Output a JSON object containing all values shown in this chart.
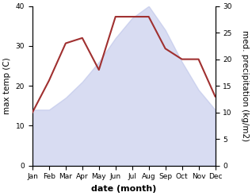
{
  "months": [
    "Jan",
    "Feb",
    "Mar",
    "Apr",
    "May",
    "Jun",
    "Jul",
    "Aug",
    "Sep",
    "Oct",
    "Nov",
    "Dec"
  ],
  "temp": [
    14,
    14,
    17,
    21,
    26,
    32,
    37,
    40,
    34,
    26,
    19,
    14
  ],
  "precip": [
    10,
    16,
    23,
    24,
    18,
    28,
    28,
    28,
    22,
    20,
    20,
    13
  ],
  "temp_fill_color": "#b8c0e8",
  "temp_fill_alpha": 0.55,
  "precip_color": "#a03030",
  "temp_ylim": [
    0,
    40
  ],
  "precip_ylim": [
    0,
    30
  ],
  "xlabel": "date (month)",
  "ylabel_left": "max temp (C)",
  "ylabel_right": "med. precipitation (kg/m2)",
  "bg_color": "#ffffff",
  "tick_label_size": 6.5,
  "axis_label_size": 7.5,
  "xlabel_fontsize": 8,
  "figsize": [
    3.18,
    2.47
  ],
  "dpi": 100
}
